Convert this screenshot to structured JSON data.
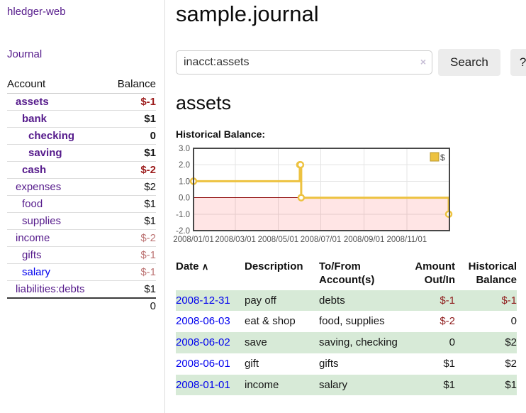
{
  "sidebar": {
    "brand": "hledger-web",
    "journal_link": "Journal",
    "accounts_table": {
      "headers": {
        "account": "Account",
        "balance": "Balance"
      },
      "rows": [
        {
          "name": "assets",
          "balance": "$-1"
        },
        {
          "name": "bank",
          "balance": "$1"
        },
        {
          "name": "checking",
          "balance": "0"
        },
        {
          "name": "saving",
          "balance": "$1"
        },
        {
          "name": "cash",
          "balance": "$-2"
        },
        {
          "name": "expenses",
          "balance": "$2"
        },
        {
          "name": "food",
          "balance": "$1"
        },
        {
          "name": "supplies",
          "balance": "$1"
        },
        {
          "name": "income",
          "balance": "$-2"
        },
        {
          "name": "gifts",
          "balance": "$-1"
        },
        {
          "name": "salary",
          "balance": "$-1"
        },
        {
          "name": "liabilities:debts",
          "balance": "$1"
        }
      ],
      "total": "0"
    }
  },
  "main": {
    "title": "sample.journal",
    "search": {
      "value": "inacct:assets",
      "clear_icon": "×",
      "button_label": "Search",
      "help_label": "?"
    },
    "account_heading": "assets",
    "chart_label": "Historical Balance:",
    "register_table": {
      "headers": {
        "date": "Date",
        "sort_arrow": "∧",
        "description": "Description",
        "accounts": "To/From Account(s)",
        "amount": "Amount Out/In",
        "balance": "Historical Balance"
      },
      "rows": [
        {
          "date": "2008-12-31",
          "description": "pay off",
          "accounts": "debts",
          "amount": "$-1",
          "balance": "$-1"
        },
        {
          "date": "2008-06-03",
          "description": "eat & shop",
          "accounts": "food, supplies",
          "amount": "$-2",
          "balance": "0"
        },
        {
          "date": "2008-06-02",
          "description": "save",
          "accounts": "saving, checking",
          "amount": "0",
          "balance": "$2"
        },
        {
          "date": "2008-06-01",
          "description": "gift",
          "accounts": "gifts",
          "amount": "$1",
          "balance": "$2"
        },
        {
          "date": "2008-01-01",
          "description": "income",
          "accounts": "salary",
          "amount": "$1",
          "balance": "$1"
        }
      ]
    }
  },
  "chart_data": {
    "type": "line",
    "style": "step",
    "title": "Historical Balance",
    "legend": [
      "$"
    ],
    "legend_position": "top-right",
    "ylim": [
      -2,
      3
    ],
    "yticks": [
      "3.0",
      "2.0",
      "1.0",
      "0.0",
      "-1.0",
      "-2.0"
    ],
    "x_range_days": 366,
    "xticks": [
      {
        "d": 0,
        "label": "2008/01/01"
      },
      {
        "d": 60,
        "label": "2008/03/01"
      },
      {
        "d": 121,
        "label": "2008/05/01"
      },
      {
        "d": 182,
        "label": "2008/07/01"
      },
      {
        "d": 244,
        "label": "2008/09/01"
      },
      {
        "d": 305,
        "label": "2008/11/01"
      }
    ],
    "series": [
      {
        "name": "$",
        "color": "#edc240",
        "points": [
          {
            "date": "2008-01-01",
            "d": 0,
            "v": 1
          },
          {
            "date": "2008-06-01",
            "d": 152,
            "v": 2
          },
          {
            "date": "2008-06-02",
            "d": 153,
            "v": 2
          },
          {
            "date": "2008-06-03",
            "d": 154,
            "v": 0
          },
          {
            "date": "2008-12-31",
            "d": 365,
            "v": -1
          }
        ]
      }
    ],
    "colors": {
      "negative_region": "rgba(255,0,0,0.10)",
      "zero_line": "#8b0000",
      "grid": "#e4e4e4",
      "border": "#474747",
      "tick_text": "#545454",
      "marker_fill": "#ffffff"
    }
  }
}
